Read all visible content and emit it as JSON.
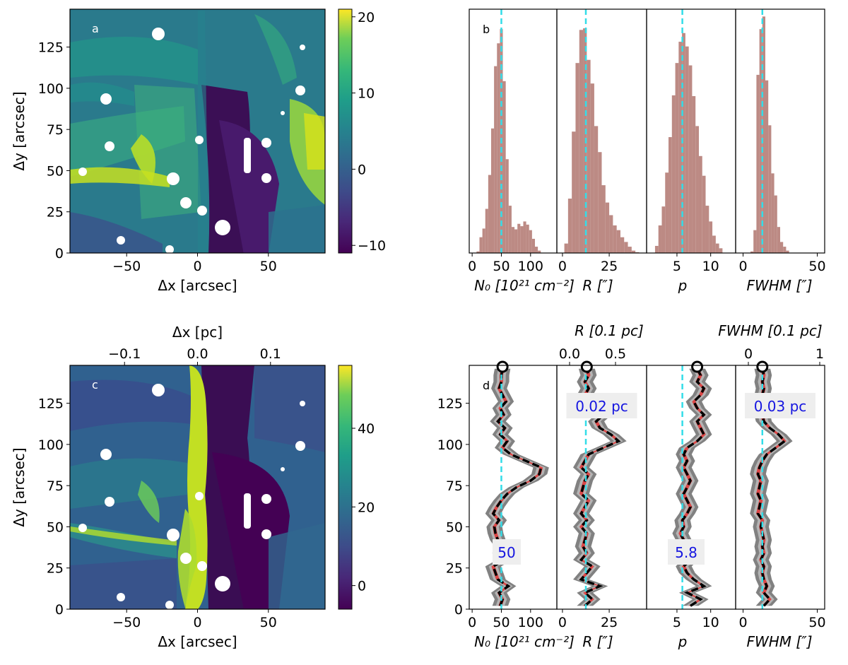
{
  "chart_data": [
    {
      "panel": "a",
      "type": "heatmap",
      "xlabel": "Δx [arcsec]",
      "ylabel": "Δy [arcsec]",
      "xlim": [
        -90,
        90
      ],
      "ylim": [
        0,
        148
      ],
      "xticks": [
        -50,
        0,
        50
      ],
      "yticks": [
        0,
        25,
        50,
        75,
        100,
        125
      ],
      "colorbar": {
        "range": [
          -11,
          21
        ],
        "ticks": [
          -10,
          0,
          10,
          20
        ],
        "colormap": "viridis"
      }
    },
    {
      "panel": "b",
      "type": "bar",
      "subpanels": [
        {
          "xlabel": "N₀ [10²¹ cm⁻²]",
          "xlim": [
            -5,
            145
          ],
          "xticks": [
            0,
            50,
            100
          ],
          "median": 50,
          "bins": [
            [
              10,
              2
            ],
            [
              15,
              20
            ],
            [
              20,
              31
            ],
            [
              25,
              56
            ],
            [
              30,
              99
            ],
            [
              35,
              158
            ],
            [
              40,
              237
            ],
            [
              45,
              266
            ],
            [
              50,
              284
            ],
            [
              55,
              218
            ],
            [
              60,
              119
            ],
            [
              65,
              60
            ],
            [
              70,
              33
            ],
            [
              75,
              30
            ],
            [
              80,
              37
            ],
            [
              85,
              34
            ],
            [
              90,
              40
            ],
            [
              95,
              36
            ],
            [
              100,
              29
            ],
            [
              105,
              18
            ],
            [
              110,
              8
            ],
            [
              115,
              3
            ]
          ]
        },
        {
          "xlabel": "R [″]",
          "xlim": [
            -3,
            45
          ],
          "xticks": [
            0,
            25
          ],
          "median": 12.5,
          "bins": [
            [
              2,
              12
            ],
            [
              4,
              69
            ],
            [
              6,
              154
            ],
            [
              8,
              241
            ],
            [
              10,
              283
            ],
            [
              12,
              285
            ],
            [
              14,
              245
            ],
            [
              16,
              215
            ],
            [
              18,
              161
            ],
            [
              20,
              128
            ],
            [
              22,
              86
            ],
            [
              24,
              64
            ],
            [
              26,
              48
            ],
            [
              28,
              35
            ],
            [
              30,
              29
            ],
            [
              32,
              20
            ],
            [
              34,
              14
            ],
            [
              36,
              8
            ],
            [
              38,
              3
            ],
            [
              40,
              1
            ]
          ]
        },
        {
          "xlabel": "p",
          "xlim": [
            0.5,
            13.7
          ],
          "xticks": [
            5,
            10
          ],
          "median": 5.8,
          "bins": [
            [
              2,
              9
            ],
            [
              2.5,
              35
            ],
            [
              3,
              59
            ],
            [
              3.5,
              102
            ],
            [
              4,
              147
            ],
            [
              4.5,
              200
            ],
            [
              5,
              241
            ],
            [
              5.5,
              268
            ],
            [
              6,
              279
            ],
            [
              6.5,
              262
            ],
            [
              7,
              238
            ],
            [
              7.5,
              199
            ],
            [
              8,
              161
            ],
            [
              8.5,
              123
            ],
            [
              9,
              98
            ],
            [
              9.5,
              60
            ],
            [
              10,
              40
            ],
            [
              10.5,
              22
            ],
            [
              11,
              12
            ],
            [
              11.5,
              6
            ]
          ]
        },
        {
          "xlabel": "FWHM [″]",
          "xlim": [
            -5,
            55
          ],
          "xticks": [
            0,
            50
          ],
          "median": 13,
          "bins": [
            [
              6,
              2
            ],
            [
              8,
              29
            ],
            [
              10,
              226
            ],
            [
              12,
              284
            ],
            [
              14,
              300
            ],
            [
              16,
              219
            ],
            [
              18,
              162
            ],
            [
              20,
              101
            ],
            [
              22,
              73
            ],
            [
              24,
              33
            ],
            [
              26,
              14
            ],
            [
              28,
              8
            ],
            [
              30,
              3
            ]
          ]
        }
      ],
      "colors": {
        "bars": "#bc8a84",
        "median": "#33dde8"
      }
    },
    {
      "panel": "c",
      "type": "heatmap",
      "xlabel": "Δx [arcsec]",
      "ylabel": "Δy [arcsec]",
      "top_xlabel": "Δx [pc]",
      "top_xticks": [
        -0.1,
        0.0,
        0.1
      ],
      "xlim": [
        -90,
        90
      ],
      "ylim": [
        0,
        148
      ],
      "xticks": [
        -50,
        0,
        50
      ],
      "yticks": [
        0,
        25,
        50,
        75,
        100,
        125
      ],
      "colorbar": {
        "range": [
          -6,
          56
        ],
        "ticks": [
          0,
          20,
          40
        ],
        "colormap": "viridis"
      }
    },
    {
      "panel": "d",
      "type": "line",
      "ylabel": "Δy [arcsec]",
      "ylim": [
        0,
        148
      ],
      "yticks": [
        0,
        25,
        50,
        75,
        100,
        125
      ],
      "subpanels": [
        {
          "xlabel": "N₀ [10²¹ cm⁻²]",
          "xlim": [
            -5,
            145
          ],
          "xticks": [
            0,
            50,
            100
          ],
          "median": 50,
          "annotation": "50"
        },
        {
          "xlabel": "R [″]",
          "top_xlabel": "R [0.1 pc]",
          "top_xticks": [
            0.0,
            0.5
          ],
          "xlim": [
            -3,
            45
          ],
          "xticks": [
            0,
            25
          ],
          "median": 12.5,
          "annotation": "0.02 pc"
        },
        {
          "xlabel": "p",
          "xlim": [
            0.5,
            13.7
          ],
          "xticks": [
            5,
            10
          ],
          "median": 5.8,
          "annotation": "5.8"
        },
        {
          "xlabel": "FWHM [″]",
          "top_xlabel": "FWHM [0.1 pc]",
          "top_xticks": [
            0,
            1
          ],
          "xlim": [
            -5,
            55
          ],
          "xticks": [
            0,
            50
          ],
          "median": 13,
          "annotation": "0.03 pc"
        }
      ],
      "profiles": [
        [
          [
            48,
            2
          ],
          [
            52,
            6
          ],
          [
            46,
            10
          ],
          [
            62,
            14
          ],
          [
            44,
            18
          ],
          [
            40,
            22
          ],
          [
            36,
            26
          ],
          [
            56,
            30
          ],
          [
            48,
            34
          ],
          [
            52,
            38
          ],
          [
            44,
            42
          ],
          [
            40,
            46
          ],
          [
            38,
            50
          ],
          [
            46,
            54
          ],
          [
            36,
            58
          ],
          [
            42,
            62
          ],
          [
            50,
            66
          ],
          [
            60,
            70
          ],
          [
            76,
            74
          ],
          [
            100,
            78
          ],
          [
            115,
            82
          ],
          [
            118,
            86
          ],
          [
            92,
            90
          ],
          [
            66,
            94
          ],
          [
            52,
            98
          ],
          [
            60,
            102
          ],
          [
            48,
            106
          ],
          [
            56,
            110
          ],
          [
            44,
            114
          ],
          [
            54,
            118
          ],
          [
            48,
            122
          ],
          [
            58,
            126
          ],
          [
            52,
            130
          ],
          [
            46,
            134
          ],
          [
            50,
            138
          ],
          [
            50,
            142
          ],
          [
            52,
            146
          ]
        ],
        [
          [
            12,
            2
          ],
          [
            16,
            6
          ],
          [
            12,
            10
          ],
          [
            20,
            14
          ],
          [
            10,
            18
          ],
          [
            13,
            22
          ],
          [
            16,
            26
          ],
          [
            10,
            30
          ],
          [
            13,
            34
          ],
          [
            11,
            38
          ],
          [
            12,
            42
          ],
          [
            13,
            46
          ],
          [
            10,
            50
          ],
          [
            13,
            54
          ],
          [
            10,
            58
          ],
          [
            12,
            62
          ],
          [
            14,
            66
          ],
          [
            10,
            70
          ],
          [
            11,
            74
          ],
          [
            12,
            78
          ],
          [
            14,
            82
          ],
          [
            10,
            86
          ],
          [
            12,
            90
          ],
          [
            14,
            94
          ],
          [
            22,
            98
          ],
          [
            30,
            102
          ],
          [
            26,
            106
          ],
          [
            20,
            110
          ],
          [
            18,
            114
          ],
          [
            22,
            118
          ],
          [
            20,
            122
          ],
          [
            16,
            126
          ],
          [
            12,
            130
          ],
          [
            14,
            134
          ],
          [
            12,
            138
          ],
          [
            14,
            142
          ],
          [
            13,
            146
          ]
        ],
        [
          [
            7,
            2
          ],
          [
            8.5,
            6
          ],
          [
            6.5,
            10
          ],
          [
            9,
            14
          ],
          [
            7.5,
            18
          ],
          [
            6.5,
            22
          ],
          [
            6,
            26
          ],
          [
            7,
            30
          ],
          [
            6.5,
            34
          ],
          [
            7,
            38
          ],
          [
            6,
            42
          ],
          [
            5.5,
            46
          ],
          [
            6,
            50
          ],
          [
            5.8,
            54
          ],
          [
            6.5,
            58
          ],
          [
            7,
            62
          ],
          [
            6.5,
            66
          ],
          [
            6,
            70
          ],
          [
            6.5,
            74
          ],
          [
            7,
            78
          ],
          [
            6.5,
            82
          ],
          [
            6,
            86
          ],
          [
            6.5,
            90
          ],
          [
            6,
            94
          ],
          [
            6.5,
            98
          ],
          [
            8,
            102
          ],
          [
            9,
            106
          ],
          [
            8.5,
            110
          ],
          [
            8,
            114
          ],
          [
            9,
            118
          ],
          [
            8,
            122
          ],
          [
            7.5,
            126
          ],
          [
            8.5,
            130
          ],
          [
            9,
            134
          ],
          [
            8,
            138
          ],
          [
            8.5,
            142
          ],
          [
            8,
            146
          ]
        ],
        [
          [
            14,
            2
          ],
          [
            18,
            6
          ],
          [
            14,
            10
          ],
          [
            16,
            14
          ],
          [
            14,
            18
          ],
          [
            13,
            22
          ],
          [
            14,
            26
          ],
          [
            12,
            30
          ],
          [
            14,
            34
          ],
          [
            13,
            38
          ],
          [
            14,
            42
          ],
          [
            13,
            46
          ],
          [
            12,
            50
          ],
          [
            13,
            54
          ],
          [
            10,
            58
          ],
          [
            11,
            62
          ],
          [
            12,
            66
          ],
          [
            10,
            70
          ],
          [
            11,
            74
          ],
          [
            12,
            78
          ],
          [
            10,
            82
          ],
          [
            11,
            86
          ],
          [
            13,
            90
          ],
          [
            16,
            94
          ],
          [
            22,
            98
          ],
          [
            28,
            102
          ],
          [
            24,
            106
          ],
          [
            18,
            110
          ],
          [
            14,
            114
          ],
          [
            13,
            118
          ],
          [
            15,
            122
          ],
          [
            14,
            126
          ],
          [
            13,
            130
          ],
          [
            14,
            134
          ],
          [
            13,
            138
          ],
          [
            14,
            142
          ],
          [
            13,
            146
          ]
        ]
      ],
      "colors": {
        "median": "#33dde8",
        "profile": "#000000",
        "band_inner": "#e03a3a",
        "band_outer": "#6b6b6b"
      }
    }
  ],
  "labels": {
    "a": "a",
    "b": "b",
    "c": "c",
    "d": "d"
  }
}
